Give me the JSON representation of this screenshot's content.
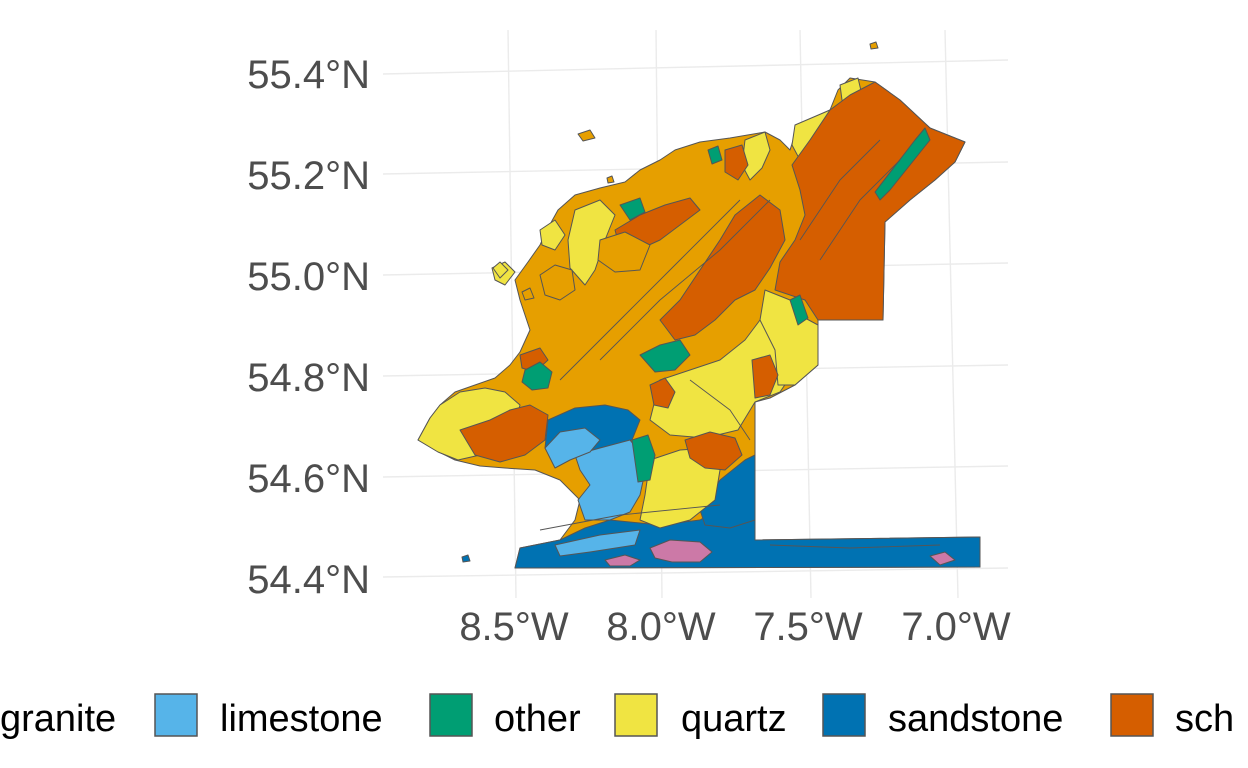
{
  "map": {
    "y_ticks": [
      {
        "value": 55.4,
        "label": "55.4°N"
      },
      {
        "value": 55.2,
        "label": "55.2°N"
      },
      {
        "value": 55.0,
        "label": "55.0°N"
      },
      {
        "value": 54.8,
        "label": "54.8°N"
      },
      {
        "value": 54.6,
        "label": "54.6°N"
      },
      {
        "value": 54.4,
        "label": "54.4°N"
      }
    ],
    "x_ticks": [
      {
        "value": -8.5,
        "label": "8.5°W"
      },
      {
        "value": -8.0,
        "label": "8.0°W"
      },
      {
        "value": -7.5,
        "label": "7.5°W"
      },
      {
        "value": -7.0,
        "label": "7.0°W"
      }
    ],
    "colors": {
      "gridline": "#ebebeb",
      "outline": "#555555",
      "granite": "#e69f00",
      "limestone": "#56b4e9",
      "other": "#009e73",
      "quartz": "#f0e442",
      "sandstone": "#0072b2",
      "schist": "#d55e00",
      "pink_unit": "#cc79a7"
    }
  },
  "legend": {
    "items": [
      {
        "key": "granite",
        "label": "granite",
        "color": "#e69f00",
        "show_swatch": false
      },
      {
        "key": "limestone",
        "label": "limestone",
        "color": "#56b4e9",
        "show_swatch": true
      },
      {
        "key": "other",
        "label": "other",
        "color": "#009e73",
        "show_swatch": true
      },
      {
        "key": "quartz",
        "label": "quartz",
        "color": "#f0e442",
        "show_swatch": true
      },
      {
        "key": "sandstone",
        "label": "sandstone",
        "color": "#0072b2",
        "show_swatch": true
      },
      {
        "key": "schist",
        "label": "sch",
        "color": "#d55e00",
        "show_swatch": false
      }
    ]
  }
}
